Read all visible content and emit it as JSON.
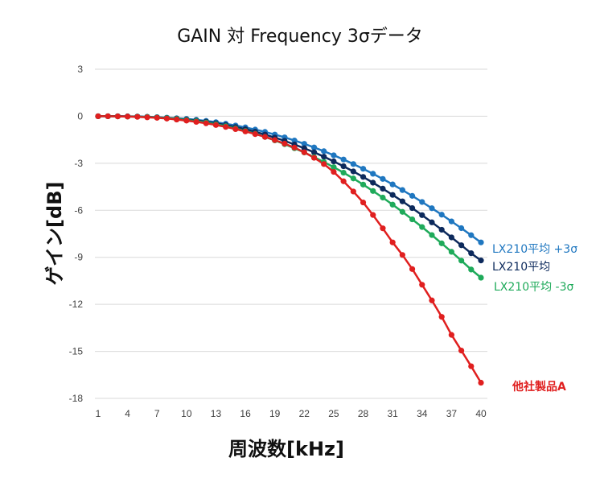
{
  "chart_data": {
    "type": "line",
    "title": "GAIN 対 Frequency 3σデータ",
    "xlabel": "周波数[kHz]",
    "ylabel": "ゲイン[dB]",
    "ylim": [
      -18,
      3
    ],
    "yticks": [
      "3",
      "0",
      "-3",
      "-6",
      "-9",
      "-12",
      "-15",
      "-18"
    ],
    "ytick_values": [
      3,
      0,
      -3,
      -6,
      -9,
      -12,
      -15,
      -18
    ],
    "xlim": [
      1,
      40
    ],
    "xticks": [
      "1",
      "4",
      "7",
      "10",
      "13",
      "16",
      "19",
      "22",
      "25",
      "28",
      "31",
      "34",
      "37",
      "40"
    ],
    "xtick_values": [
      1,
      4,
      7,
      10,
      13,
      16,
      19,
      22,
      25,
      28,
      31,
      34,
      37,
      40
    ],
    "grid": "horizontal",
    "series": [
      {
        "name": "LX210平均 +3σ",
        "color": "#1f77c0",
        "x": [
          1,
          2,
          3,
          4,
          5,
          6,
          7,
          8,
          9,
          10,
          11,
          12,
          13,
          14,
          15,
          16,
          17,
          18,
          19,
          20,
          21,
          22,
          23,
          24,
          25,
          26,
          27,
          28,
          29,
          30,
          31,
          32,
          33,
          34,
          35,
          36,
          37,
          38,
          39,
          40
        ],
        "values": [
          0.0,
          0.0,
          0.0,
          -0.01,
          -0.02,
          -0.04,
          -0.06,
          -0.09,
          -0.13,
          -0.17,
          -0.23,
          -0.3,
          -0.38,
          -0.48,
          -0.59,
          -0.71,
          -0.85,
          -1.0,
          -1.17,
          -1.35,
          -1.55,
          -1.76,
          -1.99,
          -2.23,
          -2.49,
          -2.76,
          -3.05,
          -3.35,
          -3.67,
          -4.0,
          -4.35,
          -4.71,
          -5.08,
          -5.47,
          -5.87,
          -6.28,
          -6.71,
          -7.14,
          -7.59,
          -8.05
        ]
      },
      {
        "name": "LX210平均",
        "color": "#0d2a5c",
        "x": [
          1,
          2,
          3,
          4,
          5,
          6,
          7,
          8,
          9,
          10,
          11,
          12,
          13,
          14,
          15,
          16,
          17,
          18,
          19,
          20,
          21,
          22,
          23,
          24,
          25,
          26,
          27,
          28,
          29,
          30,
          31,
          32,
          33,
          34,
          35,
          36,
          37,
          38,
          39,
          40
        ],
        "values": [
          0.0,
          0.0,
          0.0,
          -0.01,
          -0.02,
          -0.04,
          -0.07,
          -0.11,
          -0.15,
          -0.21,
          -0.27,
          -0.35,
          -0.45,
          -0.56,
          -0.69,
          -0.83,
          -0.99,
          -1.17,
          -1.36,
          -1.57,
          -1.8,
          -2.04,
          -2.3,
          -2.58,
          -2.88,
          -3.19,
          -3.52,
          -3.87,
          -4.24,
          -4.62,
          -5.02,
          -5.43,
          -5.86,
          -6.31,
          -6.77,
          -7.24,
          -7.73,
          -8.23,
          -8.74,
          -9.2
        ]
      },
      {
        "name": "LX210平均 -3σ",
        "color": "#1faa5a",
        "x": [
          1,
          2,
          3,
          4,
          5,
          6,
          7,
          8,
          9,
          10,
          11,
          12,
          13,
          14,
          15,
          16,
          17,
          18,
          19,
          20,
          21,
          22,
          23,
          24,
          25,
          26,
          27,
          28,
          29,
          30,
          31,
          32,
          33,
          34,
          35,
          36,
          37,
          38,
          39,
          40
        ],
        "values": [
          0.0,
          0.0,
          -0.01,
          -0.02,
          -0.03,
          -0.05,
          -0.08,
          -0.12,
          -0.17,
          -0.24,
          -0.31,
          -0.4,
          -0.51,
          -0.63,
          -0.78,
          -0.94,
          -1.12,
          -1.32,
          -1.54,
          -1.78,
          -2.04,
          -2.31,
          -2.61,
          -2.92,
          -3.25,
          -3.6,
          -3.97,
          -4.36,
          -4.77,
          -5.19,
          -5.64,
          -6.1,
          -6.58,
          -7.07,
          -7.58,
          -8.11,
          -8.65,
          -9.21,
          -9.78,
          -10.3
        ]
      },
      {
        "name": "他社製品A",
        "color": "#e01f1f",
        "x": [
          1,
          2,
          3,
          4,
          5,
          6,
          7,
          8,
          9,
          10,
          11,
          12,
          13,
          14,
          15,
          16,
          17,
          18,
          19,
          20,
          21,
          22,
          23,
          24,
          25,
          26,
          27,
          28,
          29,
          30,
          31,
          32,
          33,
          34,
          35,
          36,
          37,
          38,
          39,
          40
        ],
        "values": [
          0.0,
          0.0,
          -0.01,
          -0.02,
          -0.04,
          -0.07,
          -0.1,
          -0.15,
          -0.21,
          -0.28,
          -0.36,
          -0.45,
          -0.56,
          -0.68,
          -0.82,
          -0.97,
          -1.14,
          -1.32,
          -1.52,
          -1.75,
          -2.0,
          -2.3,
          -2.65,
          -3.05,
          -3.55,
          -4.15,
          -4.8,
          -5.5,
          -6.3,
          -7.15,
          -8.05,
          -8.85,
          -9.75,
          -10.75,
          -11.75,
          -12.8,
          -13.95,
          -14.95,
          -15.95,
          -17.0
        ]
      }
    ]
  }
}
